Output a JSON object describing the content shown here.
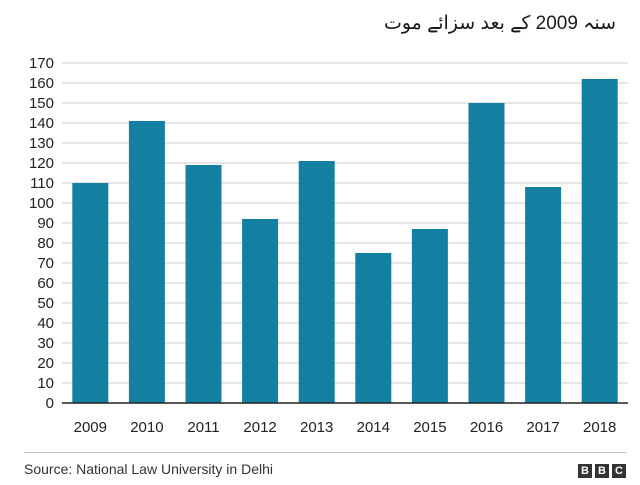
{
  "chart_data": {
    "type": "bar",
    "title": "سنہ 2009 کے بعد سزائے موت",
    "categories": [
      "2009",
      "2010",
      "2011",
      "2012",
      "2013",
      "2014",
      "2015",
      "2016",
      "2017",
      "2018"
    ],
    "values": [
      110,
      141,
      119,
      92,
      121,
      75,
      87,
      150,
      108,
      162
    ],
    "xlabel": "",
    "ylabel": "",
    "ylim": [
      0,
      170
    ],
    "yticks": [
      0,
      10,
      20,
      30,
      40,
      50,
      60,
      70,
      80,
      90,
      100,
      110,
      120,
      130,
      140,
      150,
      160,
      170
    ],
    "grid": true,
    "bar_color": "#1380A1",
    "grid_color": "#cbcbcb"
  },
  "footer": {
    "source": "Source: National Law University in Delhi",
    "logo_letters": [
      "B",
      "B",
      "C"
    ]
  }
}
